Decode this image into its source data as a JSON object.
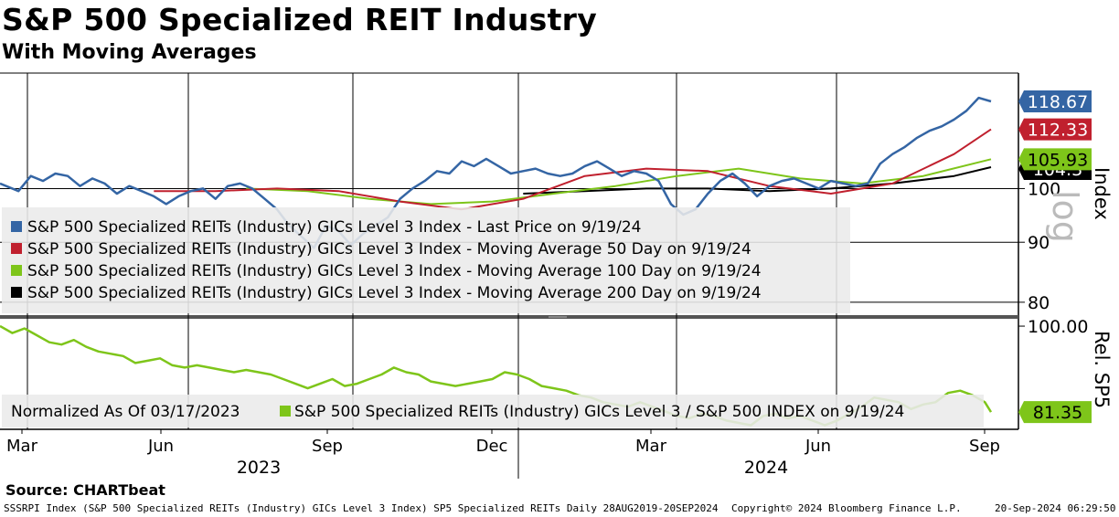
{
  "header": {
    "title": "S&P 500 Specialized REIT Industry",
    "subtitle": "With Moving Averages"
  },
  "source": "Source: CHARTbeat",
  "footer": {
    "left": "SSSRPI Index (S&P 500 Specialized REITs (Industry) GICs Level 3 Index) SP5 Specialized REITs  Daily 28AUG2019-20SEP2024",
    "middle": "Copyright© 2024 Bloomberg Finance L.P.",
    "right": "20-Sep-2024 06:29:50"
  },
  "colors": {
    "price": "#3465a4",
    "ma50": "#c0202e",
    "ma100": "#7ec51a",
    "ma200": "#000000",
    "relative": "#7ec51a"
  },
  "chart_data": [
    {
      "type": "line",
      "panel": "upper",
      "axis_label": "Index",
      "scale_note": "log",
      "ylim": [
        78,
        125
      ],
      "yticks": [
        80,
        90,
        100
      ],
      "x_months": [
        "Mar",
        "Jun",
        "Sep",
        "Dec",
        "Mar",
        "Jun",
        "Sep"
      ],
      "x_years": [
        "2023",
        "2024"
      ],
      "series": [
        {
          "name": "S&P 500 Specialized REITs (Industry) GICs Level 3 Index - Last Price on 9/19/24",
          "key": "price",
          "last": "118.67",
          "x": [
            0,
            6,
            10,
            14,
            18,
            22,
            26,
            30,
            34,
            38,
            42,
            46,
            50,
            54,
            58,
            62,
            66,
            70,
            74,
            78,
            82,
            86,
            90,
            94,
            98,
            102,
            106,
            110,
            114,
            118,
            122,
            126,
            130,
            134,
            138,
            142,
            146,
            150,
            154,
            158,
            162,
            166,
            170,
            174,
            178,
            182,
            186,
            190,
            194,
            198,
            202,
            206,
            210,
            214,
            218,
            222,
            226,
            230,
            234,
            238,
            242,
            246,
            250,
            254,
            258,
            262,
            266,
            270,
            274,
            278
          ],
          "values": [
            101.0,
            99.5,
            102.5,
            101.5,
            103.0,
            102.5,
            100.5,
            102.0,
            101.0,
            99.0,
            100.5,
            99.5,
            98.5,
            97.0,
            98.5,
            99.5,
            100.0,
            98.0,
            100.5,
            101.0,
            100.0,
            98.0,
            96.0,
            93.0,
            91.0,
            89.0,
            93.0,
            92.0,
            89.5,
            91.5,
            93.0,
            94.5,
            98.0,
            100.0,
            101.5,
            103.5,
            103.0,
            105.5,
            104.5,
            106.0,
            104.5,
            103.0,
            103.5,
            104.0,
            103.0,
            102.5,
            103.0,
            104.5,
            105.5,
            104.0,
            102.5,
            103.5,
            103.0,
            101.5,
            97.0,
            95.0,
            96.0,
            99.0,
            101.5,
            103.0,
            101.0,
            98.5,
            100.5,
            101.5,
            102.0,
            101.0,
            100.0,
            101.5,
            101.0,
            100.5
          ],
          "extra_x": [
            282,
            286,
            290,
            294,
            298,
            302,
            306,
            310,
            314,
            318,
            322
          ],
          "extra_values": [
            101.0,
            105.0,
            107.0,
            108.5,
            110.5,
            112.0,
            113.0,
            114.5,
            116.5,
            119.5,
            118.67
          ]
        },
        {
          "name": "S&P 500 Specialized REITs (Industry) GICs Level 3 Index - Moving Average 50 Day on 9/19/24",
          "key": "ma50",
          "last": "112.33",
          "x": [
            50,
            70,
            90,
            110,
            130,
            150,
            170,
            190,
            210,
            230,
            250,
            270,
            290,
            310,
            322
          ],
          "values": [
            99.5,
            99.5,
            100.0,
            99.5,
            97.5,
            96.0,
            98.0,
            102.5,
            104.0,
            103.5,
            100.5,
            99.0,
            101.0,
            107.0,
            112.33
          ]
        },
        {
          "name": "S&P 500 Specialized REITs (Industry) GICs Level 3 Index - Moving Average 100 Day on 9/19/24",
          "key": "ma100",
          "last": "105.93",
          "x": [
            80,
            100,
            120,
            140,
            160,
            180,
            200,
            220,
            240,
            260,
            280,
            300,
            322
          ],
          "values": [
            100.0,
            99.5,
            98.0,
            97.0,
            97.5,
            99.0,
            100.5,
            102.5,
            104.0,
            102.0,
            101.0,
            102.5,
            105.93
          ]
        },
        {
          "name": "S&P 500 Specialized REITs (Industry) GICs Level 3 Index - Moving Average 200 Day on 9/19/24",
          "key": "ma200",
          "last": "104.3",
          "x": [
            170,
            190,
            210,
            230,
            250,
            270,
            290,
            310,
            322
          ],
          "values": [
            99.0,
            99.5,
            100.0,
            100.0,
            99.5,
            100.0,
            101.0,
            102.5,
            104.3
          ]
        }
      ]
    },
    {
      "type": "line",
      "panel": "lower",
      "axis_label": "Rel. SP5",
      "ylim": [
        78,
        101
      ],
      "yticks": [
        100.0
      ],
      "ytick_label": "100.00",
      "note": "Normalized As Of 03/17/2023",
      "series": [
        {
          "name": "S&P 500 Specialized REITs (Industry) GICs Level 3 / S&P 500 INDEX on 9/19/24",
          "key": "relative",
          "last": "81.35",
          "x": [
            0,
            4,
            8,
            12,
            16,
            20,
            24,
            28,
            32,
            36,
            40,
            44,
            48,
            52,
            56,
            60,
            64,
            68,
            72,
            76,
            80,
            84,
            88,
            92,
            96,
            100,
            104,
            108,
            112,
            116,
            120,
            124,
            128,
            132,
            136,
            140,
            144,
            148,
            152,
            156,
            160,
            164,
            168,
            172,
            176,
            180,
            184,
            188,
            192,
            196,
            200,
            204,
            208,
            212,
            216,
            220,
            224,
            228,
            232,
            236,
            240,
            244,
            248,
            252,
            256,
            260,
            264,
            268,
            272,
            276,
            280,
            284,
            288,
            292,
            296,
            300,
            304,
            308,
            312,
            316,
            320,
            322
          ],
          "values": [
            100.0,
            98.5,
            99.5,
            98.0,
            96.5,
            96.0,
            97.0,
            95.5,
            94.5,
            94.0,
            93.5,
            92.0,
            92.5,
            93.0,
            91.5,
            91.0,
            91.5,
            91.0,
            90.5,
            90.0,
            90.5,
            90.0,
            89.5,
            88.5,
            87.5,
            86.5,
            87.5,
            88.5,
            87.0,
            87.5,
            88.5,
            89.5,
            91.0,
            90.0,
            89.5,
            88.0,
            87.5,
            87.0,
            87.5,
            88.0,
            88.5,
            90.0,
            89.5,
            88.5,
            87.0,
            86.5,
            86.0,
            85.0,
            84.5,
            83.5,
            83.0,
            82.5,
            83.5,
            82.5,
            81.5,
            80.5,
            80.0,
            81.0,
            80.5,
            79.5,
            79.0,
            78.5,
            80.5,
            81.0,
            80.0,
            80.5,
            79.5,
            78.5,
            79.5,
            81.0,
            82.5,
            84.5,
            84.0,
            83.5,
            82.0,
            83.0,
            83.5,
            85.5,
            86.0,
            85.0,
            83.5,
            81.35
          ]
        }
      ]
    }
  ]
}
